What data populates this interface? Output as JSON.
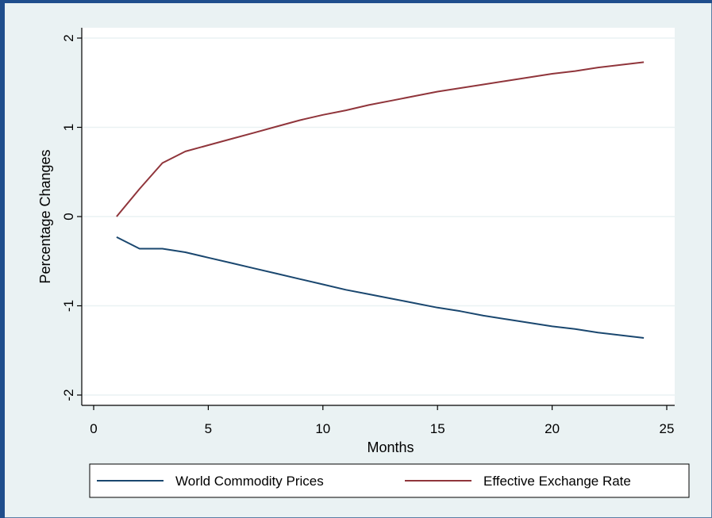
{
  "chart_data": {
    "type": "line",
    "xlabel": "Months",
    "ylabel": "Percentage Changes",
    "xlim": [
      0,
      25
    ],
    "ylim": [
      -2,
      2
    ],
    "x_ticks": [
      0,
      5,
      10,
      15,
      20,
      25
    ],
    "y_ticks": [
      -2,
      -1,
      0,
      1,
      2
    ],
    "y_tick_labels": [
      "-2",
      "-1",
      "0",
      "1",
      "2"
    ],
    "grid": true,
    "legend_position": "bottom",
    "x": [
      1,
      2,
      3,
      4,
      5,
      6,
      7,
      8,
      9,
      10,
      11,
      12,
      13,
      14,
      15,
      16,
      17,
      18,
      19,
      20,
      21,
      22,
      23,
      24
    ],
    "series": [
      {
        "name": "World Commodity Prices",
        "color": "#1a476f",
        "values": [
          -0.23,
          -0.36,
          -0.36,
          -0.4,
          -0.46,
          -0.52,
          -0.58,
          -0.64,
          -0.7,
          -0.76,
          -0.82,
          -0.87,
          -0.92,
          -0.97,
          -1.02,
          -1.06,
          -1.11,
          -1.15,
          -1.19,
          -1.23,
          -1.26,
          -1.3,
          -1.33,
          -1.36
        ]
      },
      {
        "name": "Effective Exchange Rate",
        "color": "#90353b",
        "values": [
          0.0,
          0.31,
          0.6,
          0.73,
          0.8,
          0.87,
          0.94,
          1.01,
          1.08,
          1.14,
          1.19,
          1.25,
          1.3,
          1.35,
          1.4,
          1.44,
          1.48,
          1.52,
          1.56,
          1.6,
          1.63,
          1.67,
          1.7,
          1.73
        ]
      }
    ]
  }
}
